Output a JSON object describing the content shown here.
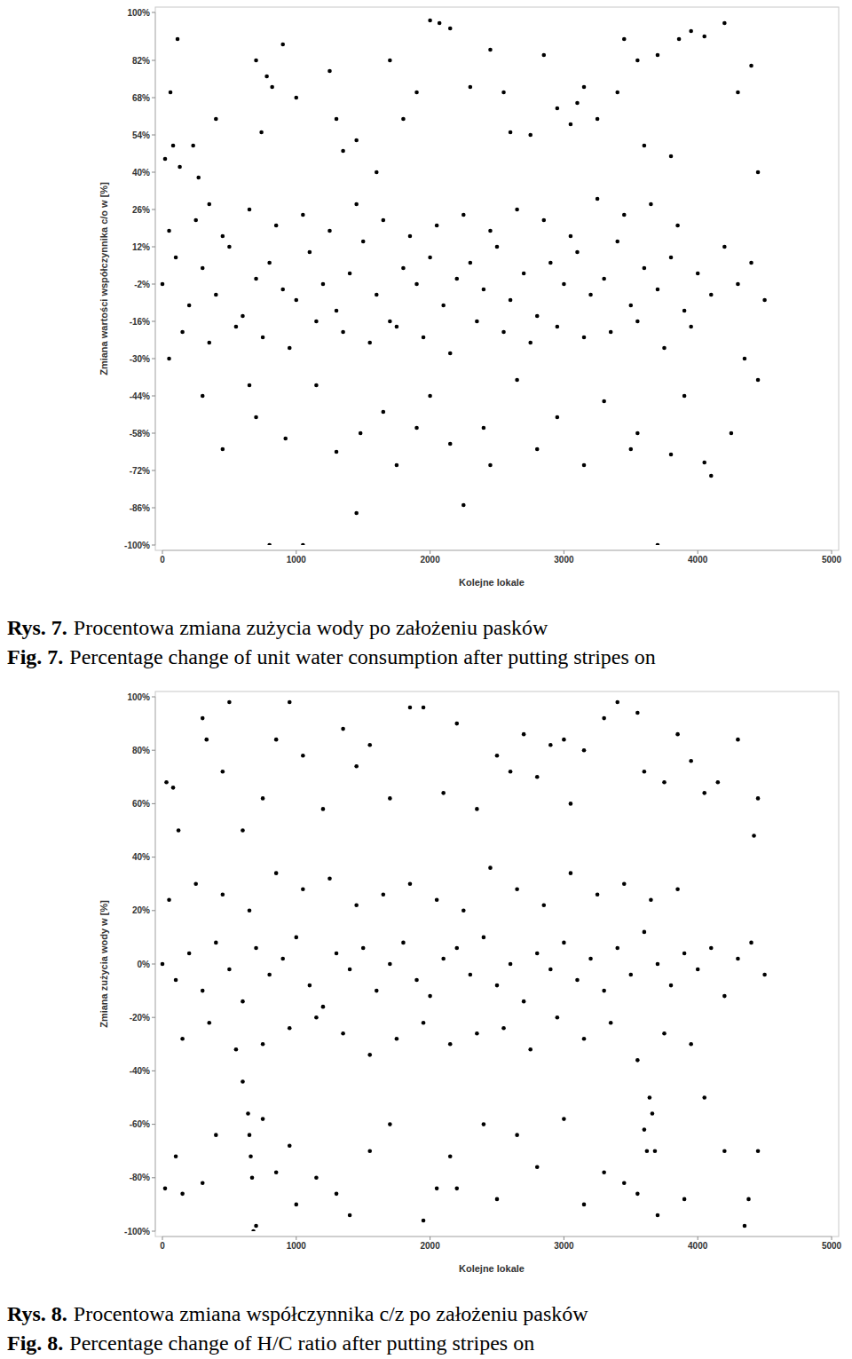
{
  "chart_data": [
    {
      "type": "scatter",
      "color": "#000000",
      "marker": "circle",
      "grid": false,
      "y_label": "Zmiana wartości współczynnika c/o w [%]",
      "x_label": "Kolejne lokale",
      "captions": [
        {
          "label": "Rys. 7.",
          "text": "Procentowa zmiana zużycia wody po założeniu pasków"
        },
        {
          "label": "Fig. 7.",
          "text": "Percentage change of unit water consumption after putting stripes on"
        }
      ],
      "xlim": [
        0,
        5000
      ],
      "xticks": [
        0,
        1000,
        2000,
        3000,
        4000,
        5000
      ],
      "ylim": [
        -100,
        100
      ],
      "yticks": [
        {
          "value": 100,
          "label": "100%"
        },
        {
          "value": 82,
          "label": "82%"
        },
        {
          "value": 68,
          "label": "68%"
        },
        {
          "value": 54,
          "label": "54%"
        },
        {
          "value": 40,
          "label": "40%"
        },
        {
          "value": 26,
          "label": "26%"
        },
        {
          "value": 12,
          "label": "12%"
        },
        {
          "value": -2,
          "label": "-2%"
        },
        {
          "value": -16,
          "label": "-16%"
        },
        {
          "value": -30,
          "label": "-30%"
        },
        {
          "value": -44,
          "label": "-44%"
        },
        {
          "value": -58,
          "label": "-58%"
        },
        {
          "value": -72,
          "label": "-72%"
        },
        {
          "value": -86,
          "label": "-86%"
        },
        {
          "value": -100,
          "label": "-100%"
        }
      ],
      "x": [
        0,
        100,
        200,
        300,
        400,
        500,
        600,
        700,
        800,
        900,
        1000,
        1100,
        1200,
        1300,
        1400,
        1500,
        1600,
        1700,
        1800,
        1900,
        2000,
        2100,
        2200,
        2300,
        2400,
        2500,
        2600,
        2700,
        2800,
        2900,
        3000,
        3100,
        3200,
        3300,
        3400,
        3500,
        3600,
        3700,
        3800,
        3900,
        4000,
        4100,
        4200,
        4300,
        4400,
        4500,
        50,
        150,
        250,
        350,
        450,
        550,
        650,
        750,
        850,
        950,
        1050,
        1150,
        1250,
        1350,
        1450,
        1550,
        1650,
        1750,
        1850,
        1950,
        2050,
        2150,
        2250,
        2350,
        2450,
        2550,
        2650,
        2750,
        2850,
        2950,
        3050,
        3150,
        3250,
        3350,
        3450,
        3550,
        3650,
        3750,
        3850,
        3950,
        113,
        60,
        20,
        80,
        130,
        230,
        400,
        270,
        350,
        700,
        780,
        820,
        900,
        740,
        1000,
        1250,
        1300,
        1350,
        1450,
        1600,
        1700,
        1800,
        1900,
        2000,
        2070,
        2150,
        2300,
        2450,
        2550,
        2600,
        2750,
        2850,
        2950,
        3050,
        3100,
        3150,
        3250,
        3400,
        3450,
        3550,
        3600,
        3700,
        3800,
        3860,
        3950,
        4050,
        4200,
        4300,
        4400,
        4450,
        50,
        300,
        450,
        650,
        700,
        800,
        920,
        1050,
        1150,
        1300,
        1450,
        1480,
        1650,
        1750,
        1900,
        2000,
        2150,
        2250,
        2400,
        2450,
        2650,
        2800,
        2950,
        3150,
        3300,
        3500,
        3550,
        3700,
        3800,
        3900,
        4050,
        4100,
        4250,
        4350,
        4450
      ],
      "values": [
        -2,
        8,
        -10,
        4,
        -6,
        12,
        -14,
        0,
        6,
        -4,
        -8,
        10,
        -2,
        -12,
        2,
        14,
        -6,
        -16,
        4,
        -2,
        8,
        -10,
        0,
        6,
        -4,
        12,
        -8,
        2,
        -14,
        6,
        -2,
        10,
        -6,
        0,
        14,
        -10,
        4,
        -4,
        8,
        -12,
        2,
        -6,
        12,
        -2,
        6,
        -8,
        18,
        -20,
        22,
        -24,
        16,
        -18,
        26,
        -22,
        20,
        -26,
        24,
        -16,
        18,
        -20,
        28,
        -24,
        22,
        -18,
        16,
        -22,
        20,
        -28,
        24,
        -16,
        18,
        -20,
        26,
        -24,
        22,
        -18,
        16,
        -22,
        30,
        -20,
        24,
        -16,
        28,
        -26,
        20,
        -18,
        90,
        70,
        45,
        50,
        42,
        50,
        60,
        38,
        28,
        82,
        76,
        72,
        88,
        55,
        68,
        78,
        60,
        48,
        52,
        40,
        82,
        60,
        70,
        97,
        96,
        94,
        72,
        86,
        70,
        55,
        54,
        84,
        64,
        58,
        66,
        72,
        60,
        70,
        90,
        82,
        50,
        84,
        46,
        90,
        93,
        91,
        96,
        70,
        80,
        40,
        -30,
        -44,
        -64,
        -40,
        -52,
        -100,
        -60,
        -100,
        -40,
        -65,
        -88,
        -58,
        -50,
        -70,
        -56,
        -44,
        -62,
        -85,
        -56,
        -70,
        -38,
        -64,
        -52,
        -70,
        -46,
        -64,
        -58,
        -100,
        -66,
        -44,
        -69,
        -74,
        -58,
        -30,
        -38
      ]
    },
    {
      "type": "scatter",
      "color": "#000000",
      "marker": "circle",
      "grid": false,
      "y_label": "Zmiana zużycia wody w [%]",
      "x_label": "Kolejne lokale",
      "captions": [
        {
          "label": "Rys. 8.",
          "text": "Procentowa zmiana współczynnika c/z po założeniu pasków"
        },
        {
          "label": "Fig. 8.",
          "text": "Percentage change of H/C ratio after putting stripes on"
        }
      ],
      "xlim": [
        0,
        5000
      ],
      "xticks": [
        0,
        1000,
        2000,
        3000,
        4000,
        5000
      ],
      "ylim": [
        -100,
        100
      ],
      "yticks": [
        {
          "value": 100,
          "label": "100%"
        },
        {
          "value": 80,
          "label": "80%"
        },
        {
          "value": 60,
          "label": "60%"
        },
        {
          "value": 40,
          "label": "40%"
        },
        {
          "value": 20,
          "label": "20%"
        },
        {
          "value": 0,
          "label": "0%"
        },
        {
          "value": -20,
          "label": "-20%"
        },
        {
          "value": -40,
          "label": "-40%"
        },
        {
          "value": -60,
          "label": "-60%"
        },
        {
          "value": -80,
          "label": "-80%"
        },
        {
          "value": -100,
          "label": "-100%"
        }
      ],
      "x": [
        0,
        100,
        200,
        300,
        400,
        500,
        600,
        700,
        800,
        900,
        1000,
        1100,
        1200,
        1300,
        1400,
        1500,
        1600,
        1700,
        1800,
        1900,
        2000,
        2100,
        2200,
        2300,
        2400,
        2500,
        2600,
        2700,
        2800,
        2900,
        3000,
        3100,
        3200,
        3300,
        3400,
        3500,
        3600,
        3700,
        3800,
        3900,
        4000,
        4100,
        4200,
        4300,
        4400,
        4500,
        50,
        150,
        250,
        350,
        450,
        550,
        650,
        750,
        850,
        950,
        1050,
        1150,
        1250,
        1350,
        1450,
        1550,
        1650,
        1750,
        1850,
        1950,
        2050,
        2150,
        2250,
        2350,
        2450,
        2550,
        2650,
        2750,
        2850,
        2950,
        3050,
        3150,
        3250,
        3350,
        3450,
        3550,
        3650,
        3750,
        3850,
        3950,
        30,
        80,
        120,
        300,
        330,
        450,
        500,
        600,
        750,
        850,
        950,
        1050,
        1200,
        1350,
        1450,
        1550,
        1700,
        1850,
        1950,
        2100,
        2200,
        2350,
        2500,
        2600,
        2700,
        2800,
        2900,
        3000,
        3050,
        3150,
        3300,
        3400,
        3550,
        3600,
        3750,
        3850,
        3950,
        4050,
        4150,
        4300,
        4420,
        4450,
        20,
        100,
        150,
        300,
        400,
        600,
        640,
        650,
        660,
        670,
        680,
        700,
        750,
        850,
        950,
        1000,
        1150,
        1300,
        1400,
        1550,
        1700,
        1950,
        2050,
        2150,
        2200,
        2400,
        2500,
        2650,
        2800,
        3000,
        3150,
        3300,
        3450,
        3550,
        3600,
        3620,
        3640,
        3660,
        3680,
        3700,
        3900,
        4050,
        4200,
        4350,
        4380,
        4450
      ],
      "values": [
        0,
        -6,
        4,
        -10,
        8,
        -2,
        -14,
        6,
        -4,
        2,
        10,
        -8,
        -16,
        4,
        -2,
        6,
        -10,
        0,
        8,
        -6,
        -12,
        2,
        6,
        -4,
        10,
        -8,
        0,
        -14,
        4,
        -2,
        8,
        -6,
        2,
        -10,
        6,
        -4,
        12,
        0,
        -8,
        4,
        -2,
        6,
        -12,
        2,
        8,
        -4,
        24,
        -28,
        30,
        -22,
        26,
        -32,
        20,
        -30,
        34,
        -24,
        28,
        -20,
        32,
        -26,
        22,
        -34,
        26,
        -28,
        30,
        -22,
        24,
        -30,
        20,
        -26,
        36,
        -24,
        28,
        -32,
        22,
        -20,
        34,
        -28,
        26,
        -22,
        30,
        -36,
        24,
        -26,
        28,
        -30,
        68,
        66,
        50,
        92,
        84,
        72,
        98,
        50,
        62,
        84,
        98,
        78,
        58,
        88,
        74,
        82,
        62,
        96,
        96,
        64,
        90,
        58,
        78,
        72,
        86,
        70,
        82,
        84,
        60,
        80,
        92,
        98,
        94,
        72,
        68,
        86,
        76,
        64,
        68,
        84,
        48,
        62,
        -84,
        -72,
        -86,
        -82,
        -64,
        -44,
        -56,
        -64,
        -72,
        -80,
        -100,
        -98,
        -58,
        -78,
        -68,
        -90,
        -80,
        -86,
        -94,
        -70,
        -60,
        -96,
        -84,
        -72,
        -84,
        -60,
        -88,
        -64,
        -76,
        -58,
        -90,
        -78,
        -82,
        -86,
        -62,
        -70,
        -50,
        -56,
        -70,
        -94,
        -88,
        -50,
        -70,
        -98,
        -88,
        -70
      ]
    }
  ]
}
